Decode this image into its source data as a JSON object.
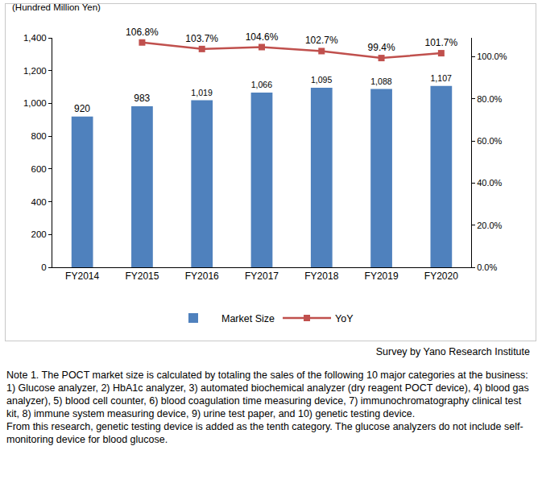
{
  "chart_data": {
    "type": "bar",
    "ylabel": "(Hundred Million Yen)",
    "categories": [
      "FY2014",
      "FY2015",
      "FY2016",
      "FY2017",
      "FY2018",
      "FY2019",
      "FY2020"
    ],
    "series": [
      {
        "name": "Market Size",
        "type": "bar",
        "color": "#4f81bd",
        "values": [
          920,
          983,
          1019,
          1066,
          1095,
          1088,
          1107
        ],
        "value_labels": [
          "920",
          "983",
          "1,019",
          "1,066",
          "1,095",
          "1,088",
          "1,107"
        ]
      },
      {
        "name": "YoY",
        "type": "line",
        "axis": "y2",
        "color": "#c0504d",
        "marker": "square",
        "values": [
          null,
          106.8,
          103.7,
          104.6,
          102.7,
          99.4,
          101.7
        ],
        "value_labels": [
          null,
          "106.8%",
          "103.7%",
          "104.6%",
          "102.7%",
          "99.4%",
          "101.7%"
        ]
      }
    ],
    "ylim": [
      0,
      1400
    ],
    "yticks": [
      0,
      200,
      400,
      600,
      800,
      {
        "value": 1000,
        "label": "1,000"
      },
      {
        "value": 1200,
        "label": "1,200"
      },
      {
        "value": 1400,
        "label": "1,400"
      }
    ],
    "y2lim": [
      0,
      109
    ],
    "y2ticks": [
      {
        "value": 0,
        "label": "0.0%"
      },
      {
        "value": 20,
        "label": "20.0%"
      },
      {
        "value": 40,
        "label": "40.0%"
      },
      {
        "value": 60,
        "label": "60.0%"
      },
      {
        "value": 80,
        "label": "80.0%"
      },
      {
        "value": 100,
        "label": "100.0%"
      }
    ],
    "data_labels": true,
    "grid": false,
    "legend": "bottom",
    "annotations": [
      "Survey by Yano Research Institute"
    ],
    "notes": [
      "Note 1.  The POCT market size is calculated by totaling the sales of the following 10 major categories at the business: 1) Glucose analyzer, 2) HbA1c analyzer, 3) automated biochemical analyzer (dry reagent POCT device), 4) blood gas analyzer), 5) blood cell counter, 6) blood coagulation time measuring device, 7) immunochromatography clinical test kit, 8) immune system measuring device, 9) urine test paper, and 10) genetic testing device.",
      "From this research, genetic testing device is  added as the tenth category. The glucose analyzers do not include self-monitoring device for blood glucose."
    ]
  }
}
